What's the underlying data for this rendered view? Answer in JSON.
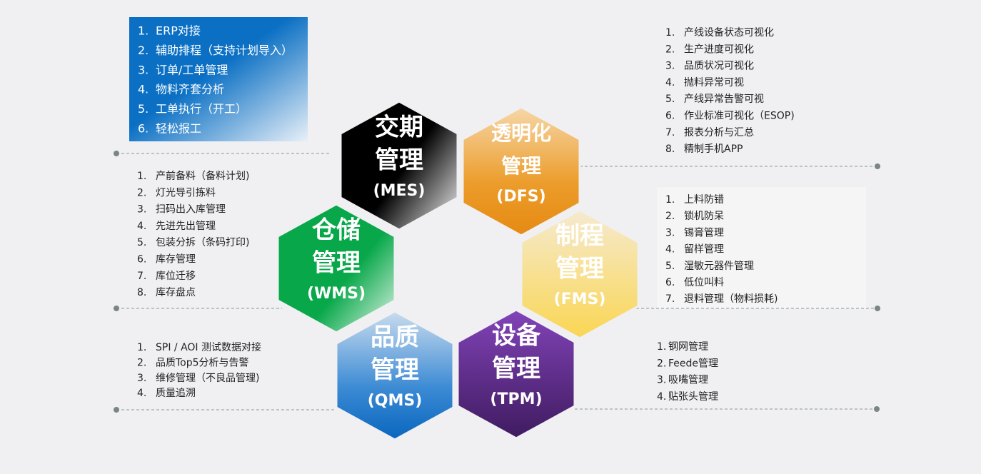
{
  "hexagons": [
    {
      "lines": [
        "交期",
        "管理",
        "(MES)"
      ]
    },
    {
      "lines": [
        "透明化",
        "管理",
        "(DFS)"
      ]
    },
    {
      "lines": [
        "仓储",
        "管理",
        "(WMS)"
      ]
    },
    {
      "lines": [
        "制程",
        "管理",
        "(FMS)"
      ]
    },
    {
      "lines": [
        "品质",
        "管理",
        "(QMS)"
      ]
    },
    {
      "lines": [
        "设备",
        "管理",
        "(TPM)"
      ]
    }
  ],
  "lists": [
    {
      "items": [
        {
          "num": "1.",
          "text": "ERP对接"
        },
        {
          "num": "2.",
          "text": "辅助排程（支持计划导入）"
        },
        {
          "num": "3.",
          "text": "订单/工单管理"
        },
        {
          "num": "4.",
          "text": "物料齐套分析"
        },
        {
          "num": "5.",
          "text": "工单执行（开工）"
        },
        {
          "num": "6.",
          "text": "轻松报工"
        }
      ]
    },
    {
      "items": [
        {
          "num": "1.",
          "text": "产线设备状态可视化"
        },
        {
          "num": "2.",
          "text": "生产进度可视化"
        },
        {
          "num": "3.",
          "text": "品质状况可视化"
        },
        {
          "num": "4.",
          "text": "抛料异常可视"
        },
        {
          "num": "5.",
          "text": "产线异常告警可视"
        },
        {
          "num": "6.",
          "text": "作业标准可视化（ESOP)"
        },
        {
          "num": "7.",
          "text": "报表分析与汇总"
        },
        {
          "num": "8.",
          "text": "精制手机APP"
        }
      ]
    },
    {
      "items": [
        {
          "num": "1.",
          "text": "产前备料（备料计划)"
        },
        {
          "num": "2.",
          "text": "灯光导引拣料"
        },
        {
          "num": "3.",
          "text": "扫码出入库管理"
        },
        {
          "num": "4.",
          "text": "先进先出管理"
        },
        {
          "num": "5.",
          "text": "包装分拆（条码打印)"
        },
        {
          "num": "6.",
          "text": "库存管理"
        },
        {
          "num": "7.",
          "text": "库位迁移"
        },
        {
          "num": "8.",
          "text": "库存盘点"
        }
      ]
    },
    {
      "items": [
        {
          "num": "1.",
          "text": "上料防错"
        },
        {
          "num": "2.",
          "text": "锁机防呆"
        },
        {
          "num": "3.",
          "text": "锡膏管理"
        },
        {
          "num": "4.",
          "text": "留样管理"
        },
        {
          "num": "5.",
          "text": "湿敏元器件管理"
        },
        {
          "num": "6.",
          "text": "低位叫料"
        },
        {
          "num": "7.",
          "text": "退料管理（物料损耗)"
        }
      ]
    },
    {
      "items": [
        {
          "num": "1.",
          "text": "SPI / AOI 测试数据对接"
        },
        {
          "num": "2.",
          "text": "品质Top5分析与告警"
        },
        {
          "num": "3.",
          "text": "维修管理（不良品管理)"
        },
        {
          "num": "4.",
          "text": "质量追溯"
        }
      ]
    },
    {
      "items": [
        {
          "num": "1.",
          "text": "钢网管理"
        },
        {
          "num": "2.",
          "text": "Feede管理"
        },
        {
          "num": "3.",
          "text": "吸嘴管理"
        },
        {
          "num": "4.",
          "text": "贴张头管理"
        }
      ]
    }
  ]
}
